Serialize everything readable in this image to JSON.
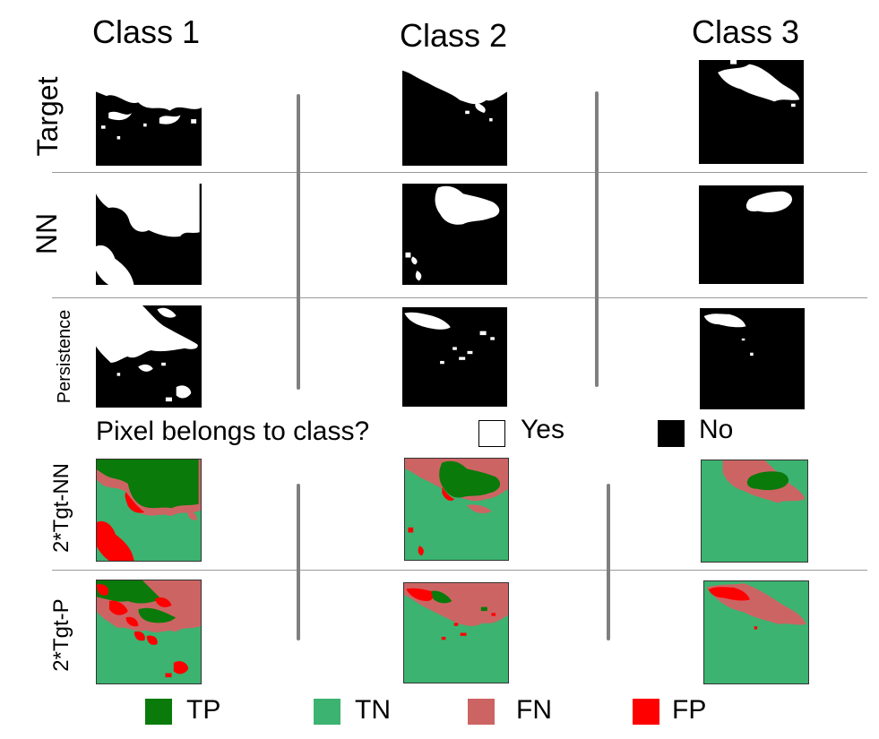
{
  "columns": [
    "Class 1",
    "Class 2",
    "Class 3"
  ],
  "rows": {
    "target": "Target",
    "nn": "NN",
    "persistence": "Persistence",
    "tgt_nn": "2*Tgt-NN",
    "tgt_p": "2*Tgt-P"
  },
  "binary_legend": {
    "question": "Pixel belongs to class?",
    "yes_label": "Yes",
    "no_label": "No",
    "yes_color": "#ffffff",
    "no_color": "#000000"
  },
  "confusion_legend": [
    {
      "label": "TP",
      "color": "#0a7a0a"
    },
    {
      "label": "TN",
      "color": "#3cb371"
    },
    {
      "label": "FN",
      "color": "#cd6464"
    },
    {
      "label": "FP",
      "color": "#ff0000"
    }
  ]
}
